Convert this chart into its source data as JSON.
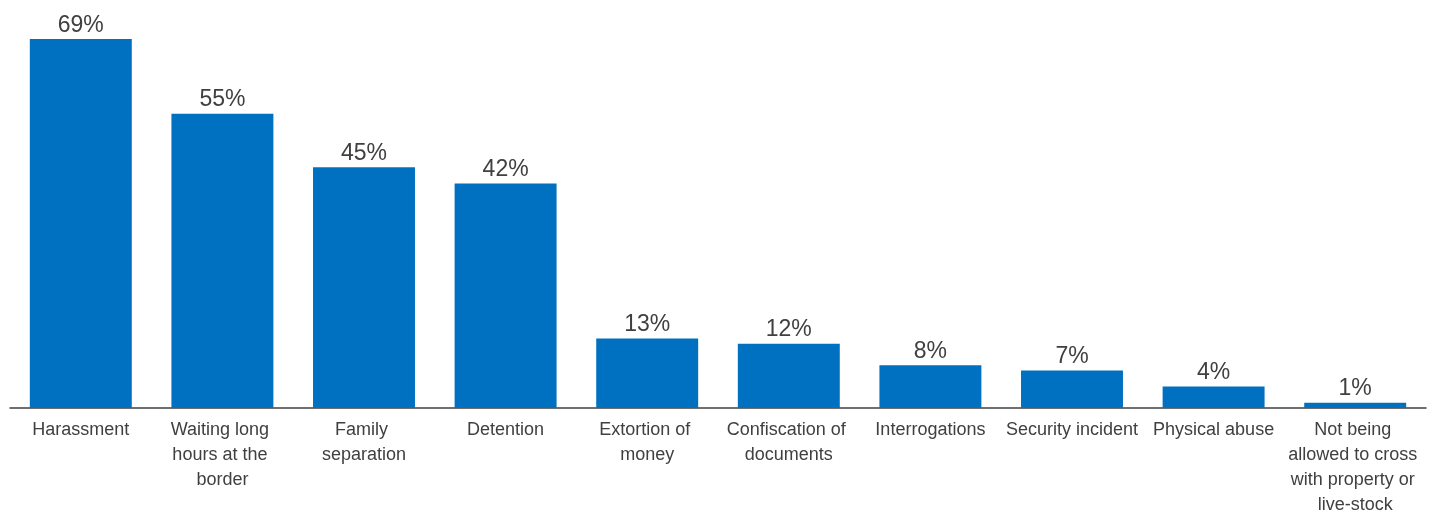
{
  "chart_data": {
    "type": "bar",
    "categories": [
      "Harassment",
      "Waiting long hours at the border",
      "Family separation",
      "Detention",
      "Extortion of money",
      "Confiscation of documents",
      "Interrogations",
      "Security incident",
      "Physical abuse",
      "Not being allowed to cross with property or live-stock"
    ],
    "values": [
      69,
      55,
      45,
      42,
      13,
      12,
      8,
      7,
      4,
      1
    ],
    "value_labels": [
      "69%",
      "55%",
      "45%",
      "42%",
      "13%",
      "12%",
      "8%",
      "7%",
      "4%",
      "1%"
    ],
    "color": "#0070c0"
  }
}
